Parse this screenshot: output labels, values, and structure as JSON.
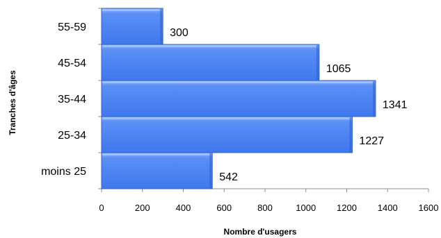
{
  "chart_data": {
    "type": "bar",
    "orientation": "horizontal",
    "categories": [
      "55-59",
      "45-54",
      "35-44",
      "25-34",
      "moins 25"
    ],
    "values": [
      300,
      1065,
      1341,
      1227,
      542
    ],
    "data_labels": [
      "300",
      "1065",
      "1341",
      "1227",
      "542"
    ],
    "xlabel": "Nombre d'usagers",
    "ylabel": "Tranches d'âges",
    "xlim": [
      0,
      1600
    ],
    "x_ticks": [
      "0",
      "200",
      "400",
      "600",
      "800",
      "1000",
      "1200",
      "1400",
      "1600"
    ],
    "grid": false,
    "legend": "none",
    "bar_color": "#4f86f4",
    "bar_edge_color": "#2f5fc8"
  }
}
